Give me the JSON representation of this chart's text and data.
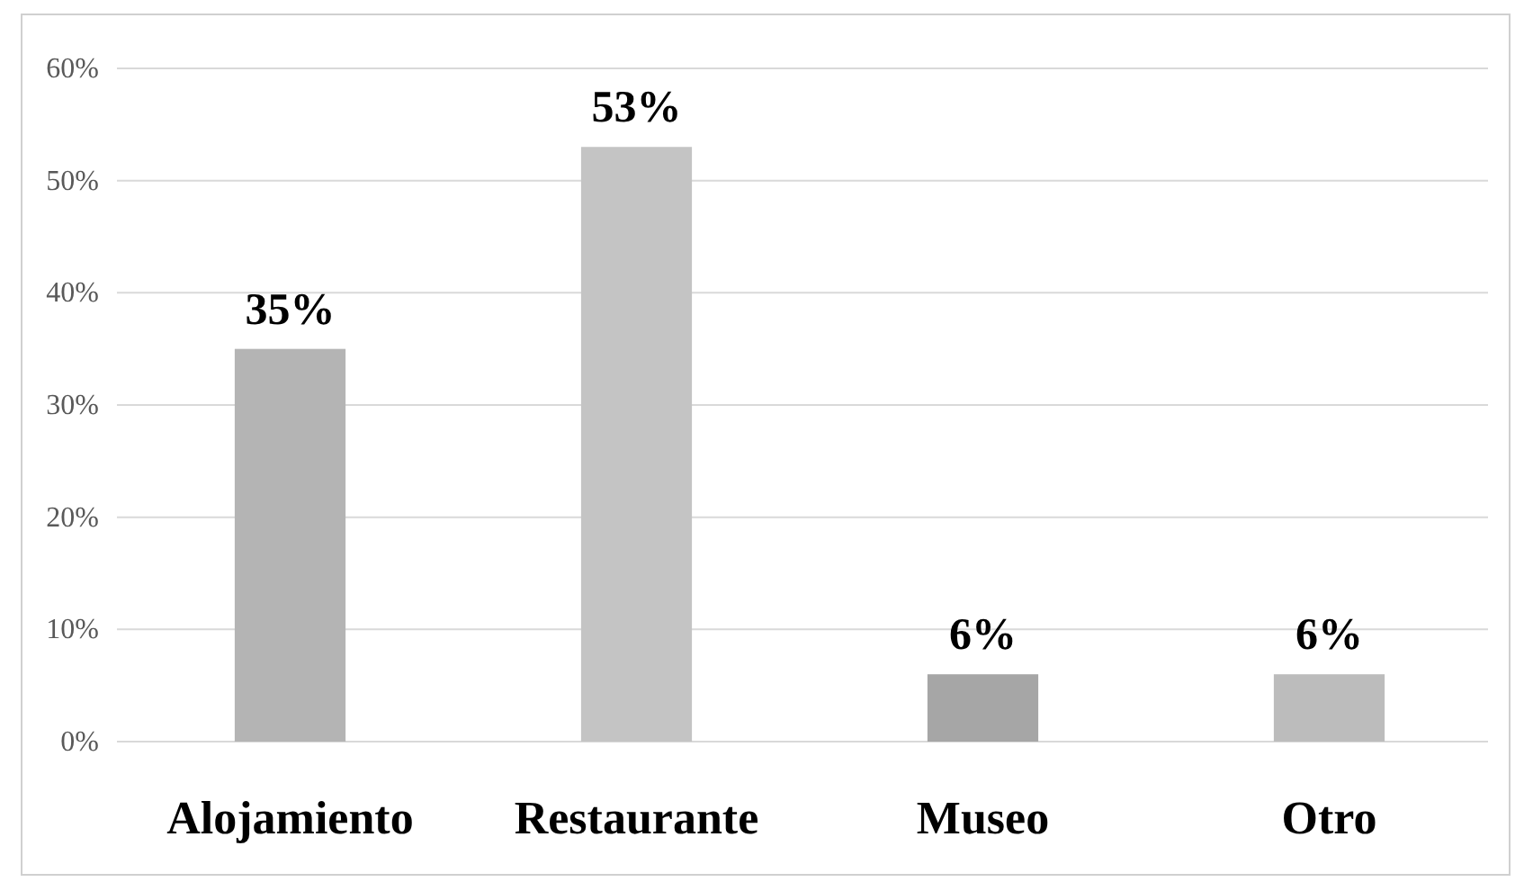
{
  "chart_data": {
    "type": "bar",
    "categories": [
      "Alojamiento",
      "Restaurante",
      "Museo",
      "Otro"
    ],
    "values": [
      35,
      53,
      6,
      6
    ],
    "colors": [
      "#b4b4b4",
      "#c4c4c4",
      "#a6a6a6",
      "#bcbcbc"
    ],
    "value_labels": [
      "35%",
      "53%",
      "6%",
      "6%"
    ],
    "ylim": [
      0,
      60
    ],
    "yticks": [
      {
        "value": 0,
        "label": "0%"
      },
      {
        "value": 10,
        "label": "10%"
      },
      {
        "value": 20,
        "label": "20%"
      },
      {
        "value": 30,
        "label": "30%"
      },
      {
        "value": 40,
        "label": "40%"
      },
      {
        "value": 50,
        "label": "50%"
      },
      {
        "value": 60,
        "label": "60%"
      }
    ],
    "grid": "y"
  }
}
